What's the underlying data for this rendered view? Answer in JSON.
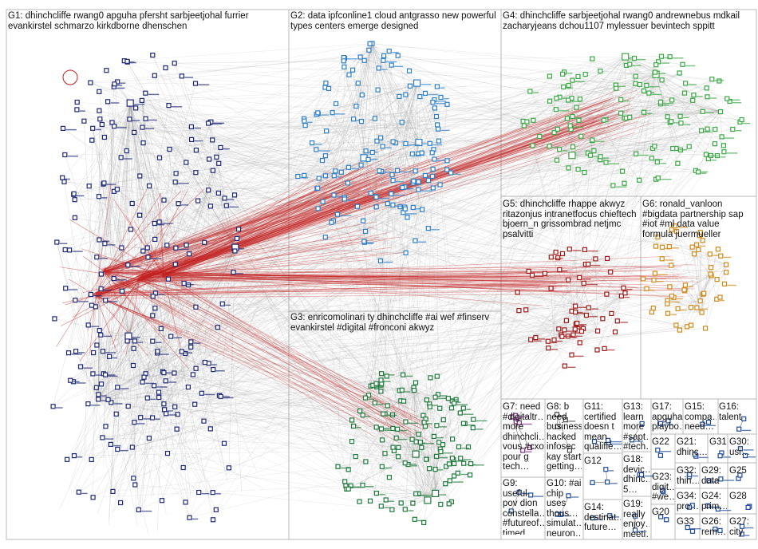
{
  "groups": [
    {
      "id": "G1",
      "label": "G1: dhinchcliffe rwang0 apguha pfersht sarbjeetjohal furrier\nevankirstel schmarzo kirkdborne dhenschen",
      "color": "#1e2a78"
    },
    {
      "id": "G2",
      "label": "G2: data ipfconline1 cloud antgrasso new powerful\ntypes centers emerge designed",
      "color": "#2e7fc9"
    },
    {
      "id": "G3",
      "label": "G3: enricomolinari ty dhinchcliffe #ai wef #finserv\nevankirstel #digital #fronconi akwyz",
      "color": "#1f7a3c"
    },
    {
      "id": "G4",
      "label": "G4: dhinchcliffe sarbjeetjohal rwang0 andrewnebus mdkail\nzacharyjeans dchou1107 mylessuer bevintech sppitt",
      "color": "#3aa845"
    },
    {
      "id": "G5",
      "label": "G5: dhinchcliffe rhappe akwyz\nritazonjus intranetfocus chieftech\nbjoern_n grissombrad netjmc\npsalvitti",
      "color": "#a01818"
    },
    {
      "id": "G6",
      "label": "G6: ronald_vanloon\n#bigdata partnership sap\n#iot #ml data value\nformula juermueller",
      "color": "#d08a1a"
    },
    {
      "id": "G7",
      "label": "G7: need\n#digitaltr…\nmore\ndhinchcli…\nvous #cxo\npour g\ntech…",
      "color": "#7a2a7a"
    },
    {
      "id": "G8",
      "label": "G8: b\nneed\nbusiness\nhacked\ninfosec\nkay start\ngetting…",
      "color": "#444444"
    },
    {
      "id": "G9",
      "label": "G9: useful\npov dion\nconstella…\n#futureof…\ntimed…",
      "color": "#1e4a9a"
    },
    {
      "id": "G10",
      "label": "G10: #ai\nchip\nuses\nthous…\nsimulat…\nneuron…",
      "color": "#1e4a9a"
    },
    {
      "id": "G11",
      "label": "G11:\ncertified\ndoesn t\nmean\nqualifie…",
      "color": "#1e4a9a"
    },
    {
      "id": "G12",
      "label": "G12",
      "color": "#1e4a9a"
    },
    {
      "id": "G13",
      "label": "G13:\nlearn\nmore\n#sapt…\n#tech…",
      "color": "#1e4a9a"
    },
    {
      "id": "G14",
      "label": "G14:\ndestinat…\nfuture…",
      "color": "#1e4a9a"
    },
    {
      "id": "G15",
      "label": "G15:\ncompa…\nneed…",
      "color": "#1e4a9a"
    },
    {
      "id": "G16",
      "label": "G16:\ntalent",
      "color": "#1e4a9a"
    },
    {
      "id": "G17",
      "label": "G17:\napguha\nplaybo…",
      "color": "#1e4a9a"
    },
    {
      "id": "G18",
      "label": "G18:\ndevic…\ndhinc…\n5…",
      "color": "#1e4a9a"
    },
    {
      "id": "G19",
      "label": "G19:\nreally\nenjoy…\nmeeti…",
      "color": "#1e4a9a"
    },
    {
      "id": "G20",
      "label": "G20",
      "color": "#1e4a9a"
    },
    {
      "id": "G21",
      "label": "G21:\ndhinc…",
      "color": "#1e4a9a"
    },
    {
      "id": "G22",
      "label": "G22",
      "color": "#1e4a9a"
    },
    {
      "id": "G23",
      "label": "G23:\ndigit…\n#we…",
      "color": "#1e4a9a"
    },
    {
      "id": "G24",
      "label": "G24:\nprim…",
      "color": "#1e4a9a"
    },
    {
      "id": "G25",
      "label": "G25",
      "color": "#1e4a9a"
    },
    {
      "id": "G26",
      "label": "G26:\nrem…",
      "color": "#1e4a9a"
    },
    {
      "id": "G27",
      "label": "G27:\ncity",
      "color": "#1e4a9a"
    },
    {
      "id": "G28",
      "label": "G28",
      "color": "#1e4a9a"
    },
    {
      "id": "G29",
      "label": "G29:\ndata",
      "color": "#1e4a9a"
    },
    {
      "id": "G30",
      "label": "G30:\nusi…",
      "color": "#1e4a9a"
    },
    {
      "id": "G31",
      "label": "G31",
      "color": "#1e4a9a"
    },
    {
      "id": "G32",
      "label": "G32:\nthin…",
      "color": "#1e4a9a"
    },
    {
      "id": "G33",
      "label": "G33",
      "color": "#1e4a9a"
    },
    {
      "id": "G34",
      "label": "G34:\npro…",
      "color": "#1e4a9a"
    }
  ],
  "colors": {
    "box_border": "#b8b8b8",
    "edge": "#9a9a9a",
    "edge_between": "#c41e1e",
    "background": "#ffffff"
  }
}
